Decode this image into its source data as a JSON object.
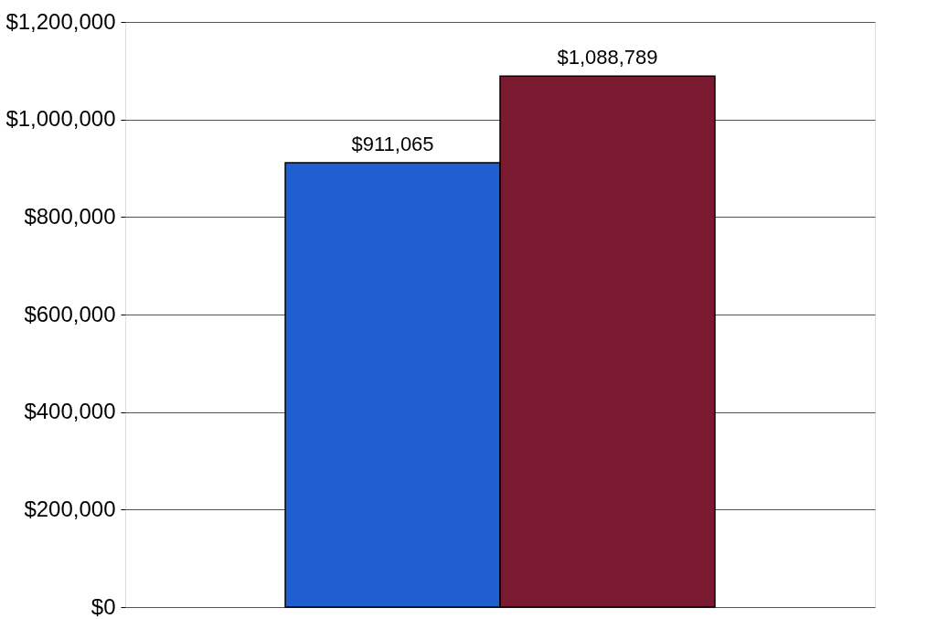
{
  "chart_data": {
    "type": "bar",
    "categories": [
      null,
      null
    ],
    "values": [
      911065,
      1088789
    ],
    "colors": [
      "#1f5fd0",
      "#7a1a30"
    ],
    "value_labels": [
      "$911,065",
      "$1,088,789"
    ],
    "ylim": [
      0,
      1200000
    ],
    "yticks": [
      {
        "value": 0,
        "label": "$0"
      },
      {
        "value": 200000,
        "label": "$200,000"
      },
      {
        "value": 400000,
        "label": "$400,000"
      },
      {
        "value": 600000,
        "label": "$600,000"
      },
      {
        "value": 800000,
        "label": "$800,000"
      },
      {
        "value": 1000000,
        "label": "$1,000,000"
      },
      {
        "value": 1200000,
        "label": "$1,200,000"
      }
    ],
    "grid": "y",
    "tick_labels": "y"
  }
}
